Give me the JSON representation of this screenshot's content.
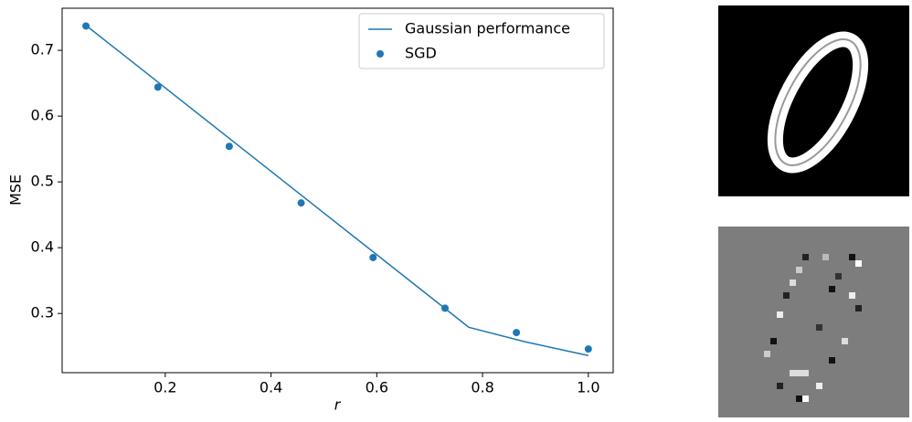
{
  "chart_data": {
    "type": "line",
    "x_label": "r",
    "y_label": "MSE",
    "xlim": [
      0.005,
      1.047
    ],
    "ylim": [
      0.21,
      0.764
    ],
    "xticks": [
      0.2,
      0.4,
      0.6,
      0.8,
      {
        "value": 1,
        "label": "1.0"
      }
    ],
    "yticks": [
      0.3,
      0.4,
      0.5,
      0.6,
      0.7
    ],
    "legend": "upper right",
    "series": [
      {
        "name": "Gaussian performance",
        "type": "line",
        "color": "#1f77b4",
        "x": [
          0.05,
          0.774,
          0.88,
          1.0
        ],
        "values": [
          0.738,
          0.279,
          0.257,
          0.236
        ]
      },
      {
        "name": "SGD",
        "type": "scatter",
        "color": "#1f77b4",
        "x": [
          0.05,
          0.186,
          0.321,
          0.457,
          0.593,
          0.729,
          0.864,
          1.0
        ],
        "values": [
          0.737,
          0.644,
          0.554,
          0.468,
          0.385,
          0.308,
          0.271,
          0.246
        ]
      }
    ]
  }
}
